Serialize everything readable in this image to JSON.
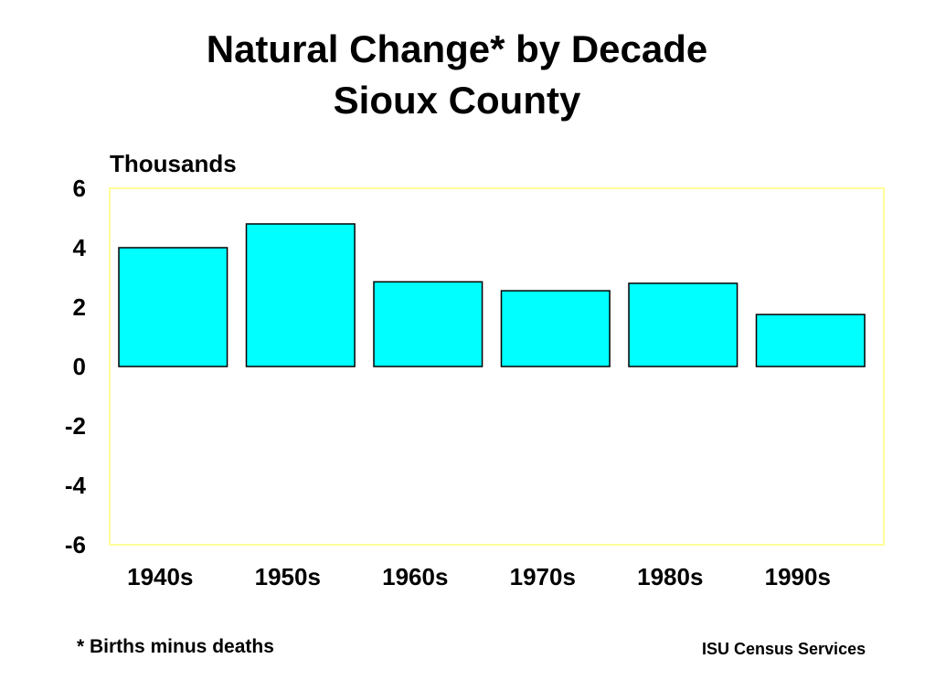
{
  "chart_data": {
    "type": "bar",
    "title": "Natural Change* by Decade",
    "subtitle": "Sioux County",
    "ylabel": "Thousands",
    "categories": [
      "1940s",
      "1950s",
      "1960s",
      "1970s",
      "1980s",
      "1990s"
    ],
    "values": [
      4.0,
      4.8,
      2.85,
      2.55,
      2.8,
      1.75
    ],
    "ylim": [
      -6,
      6
    ],
    "yticks": [
      "6",
      "4",
      "2",
      "0",
      "-2",
      "-4",
      "-6"
    ],
    "grid": false,
    "bar_color": "#00ffff",
    "bar_edge_color": "#000000",
    "plot_border_color": "#ffff99"
  },
  "footnote": "* Births minus deaths",
  "credit": "ISU Census Services"
}
